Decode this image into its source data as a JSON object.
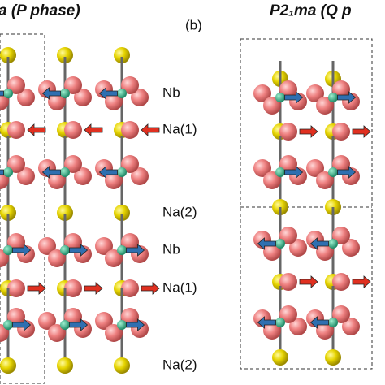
{
  "left_panel": {
    "title": "a (P phase)",
    "panel_label": "(b)",
    "labels": [
      "Nb",
      "Na(1)",
      "Na(2)",
      "Nb",
      "Na(1)",
      "Na(2)"
    ]
  },
  "right_panel": {
    "title": "P2₁ma (Q p"
  }
}
